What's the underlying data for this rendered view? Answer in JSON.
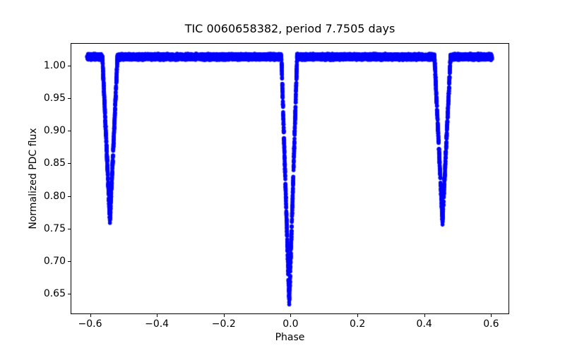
{
  "chart_data": {
    "type": "scatter",
    "title": "TIC 0060658382, period 7.7505 days",
    "xlabel": "Phase",
    "ylabel": "Normalized PDC flux",
    "xlim": [
      -0.656,
      0.652
    ],
    "ylim": [
      0.62,
      1.033
    ],
    "grid": false,
    "legend": false,
    "background_color": "#ffffff",
    "spine_color": "#000000",
    "text_color": "#000000",
    "marker": {
      "color": "#0000ff",
      "radius_px": 2.8
    },
    "xticks": [
      {
        "value": -0.6,
        "label": "−0.6"
      },
      {
        "value": -0.4,
        "label": "−0.4"
      },
      {
        "value": -0.2,
        "label": "−0.2"
      },
      {
        "value": 0.0,
        "label": "0.0"
      },
      {
        "value": 0.2,
        "label": "0.2"
      },
      {
        "value": 0.4,
        "label": "0.4"
      },
      {
        "value": 0.6,
        "label": "0.6"
      }
    ],
    "yticks": [
      {
        "value": 0.65,
        "label": "0.65"
      },
      {
        "value": 0.7,
        "label": "0.70"
      },
      {
        "value": 0.75,
        "label": "0.75"
      },
      {
        "value": 0.8,
        "label": "0.80"
      },
      {
        "value": 0.85,
        "label": "0.85"
      },
      {
        "value": 0.9,
        "label": "0.90"
      },
      {
        "value": 0.95,
        "label": "0.95"
      },
      {
        "value": 1.0,
        "label": "1.00"
      }
    ],
    "series": [
      {
        "name": "phase-folded-light-curve",
        "x_range": [
          -0.608,
          0.602
        ],
        "baseline_flux": 1.013,
        "flux_jitter": 0.005,
        "phase_jitter": 0.0012,
        "n_points": 12000,
        "eclipses": [
          {
            "name": "secondary-eclipse-alias",
            "center_phase": -0.5405,
            "half_width_phase": 0.0225,
            "min_flux": 0.76
          },
          {
            "name": "primary-eclipse",
            "center_phase": -0.004,
            "half_width_phase": 0.0235,
            "min_flux": 0.635
          },
          {
            "name": "secondary-eclipse",
            "center_phase": 0.4545,
            "half_width_phase": 0.024,
            "min_flux": 0.76
          }
        ]
      }
    ]
  }
}
